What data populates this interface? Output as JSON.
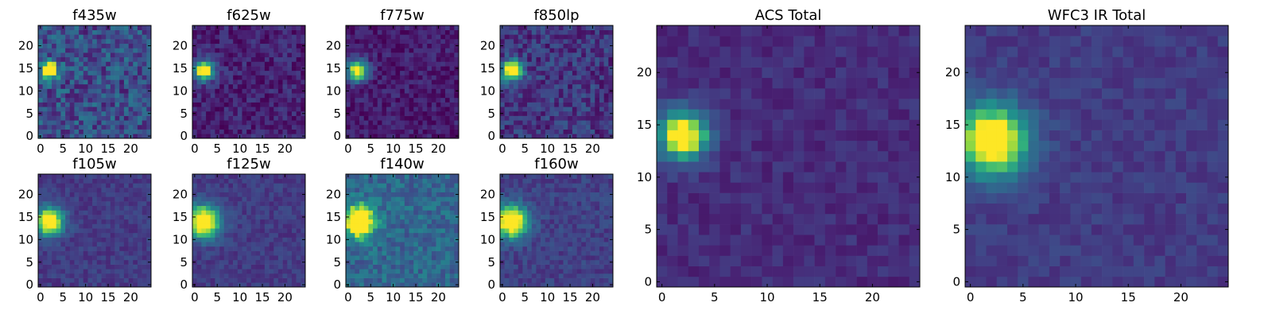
{
  "chart_data": [
    {
      "type": "heatmap",
      "title": "f435w",
      "xticks": [
        "0",
        "5",
        "10",
        "15",
        "20"
      ],
      "yticks": [
        "0",
        "5",
        "10",
        "15",
        "20"
      ],
      "xlim": [
        0,
        25
      ],
      "ylim": [
        0,
        25
      ],
      "peak": [
        2.5,
        15
      ],
      "peak_sigma": 1.4,
      "noise": 0.42,
      "background": 0.3,
      "palette": "viridis",
      "seed": 11
    },
    {
      "type": "heatmap",
      "title": "f625w",
      "xticks": [
        "0",
        "5",
        "10",
        "15",
        "20"
      ],
      "yticks": [
        "0",
        "5",
        "10",
        "15",
        "20"
      ],
      "xlim": [
        0,
        25
      ],
      "ylim": [
        0,
        25
      ],
      "peak": [
        2.5,
        15
      ],
      "peak_sigma": 1.6,
      "noise": 0.25,
      "background": 0.12,
      "palette": "viridis",
      "seed": 12
    },
    {
      "type": "heatmap",
      "title": "f775w",
      "xticks": [
        "0",
        "5",
        "10",
        "15",
        "20"
      ],
      "yticks": [
        "0",
        "5",
        "10",
        "15",
        "20"
      ],
      "xlim": [
        0,
        25
      ],
      "ylim": [
        0,
        25
      ],
      "peak": [
        2.5,
        15
      ],
      "peak_sigma": 1.6,
      "noise": 0.22,
      "background": 0.1,
      "palette": "viridis",
      "seed": 13
    },
    {
      "type": "heatmap",
      "title": "f850lp",
      "xticks": [
        "0",
        "5",
        "10",
        "15",
        "20"
      ],
      "yticks": [
        "0",
        "5",
        "10",
        "15",
        "20"
      ],
      "xlim": [
        0,
        25
      ],
      "ylim": [
        0,
        25
      ],
      "peak": [
        2.5,
        15
      ],
      "peak_sigma": 1.6,
      "noise": 0.32,
      "background": 0.2,
      "palette": "viridis",
      "seed": 14
    },
    {
      "type": "heatmap",
      "title": "f105w",
      "xticks": [
        "0",
        "5",
        "10",
        "15",
        "20"
      ],
      "yticks": [
        "0",
        "5",
        "10",
        "15",
        "20"
      ],
      "xlim": [
        0,
        25
      ],
      "ylim": [
        0,
        25
      ],
      "peak": [
        2.5,
        14.5
      ],
      "peak_sigma": 2.2,
      "noise": 0.16,
      "background": 0.22,
      "palette": "viridis",
      "seed": 15
    },
    {
      "type": "heatmap",
      "title": "f125w",
      "xticks": [
        "0",
        "5",
        "10",
        "15",
        "20"
      ],
      "yticks": [
        "0",
        "5",
        "10",
        "15",
        "20"
      ],
      "xlim": [
        0,
        25
      ],
      "ylim": [
        0,
        25
      ],
      "peak": [
        2.5,
        14.5
      ],
      "peak_sigma": 2.6,
      "noise": 0.16,
      "background": 0.22,
      "palette": "viridis",
      "seed": 16
    },
    {
      "type": "heatmap",
      "title": "f140w",
      "xticks": [
        "0",
        "5",
        "10",
        "15",
        "20"
      ],
      "yticks": [
        "0",
        "5",
        "10",
        "15",
        "20"
      ],
      "xlim": [
        0,
        25
      ],
      "ylim": [
        0,
        25
      ],
      "peak": [
        3,
        14.5
      ],
      "peak_sigma": 2.4,
      "noise": 0.28,
      "background": 0.42,
      "palette": "viridis",
      "seed": 17
    },
    {
      "type": "heatmap",
      "title": "f160w",
      "xticks": [
        "0",
        "5",
        "10",
        "15",
        "20"
      ],
      "yticks": [
        "0",
        "5",
        "10",
        "15",
        "20"
      ],
      "xlim": [
        0,
        25
      ],
      "ylim": [
        0,
        25
      ],
      "peak": [
        2.5,
        14.5
      ],
      "peak_sigma": 2.6,
      "noise": 0.18,
      "background": 0.24,
      "palette": "viridis",
      "seed": 18
    },
    {
      "type": "heatmap",
      "title": "ACS Total",
      "xticks": [
        "0",
        "5",
        "10",
        "15",
        "20"
      ],
      "yticks": [
        "0",
        "5",
        "10",
        "15",
        "20"
      ],
      "xlim": [
        0,
        25
      ],
      "ylim": [
        0,
        25
      ],
      "peak": [
        2.5,
        14.5
      ],
      "peak_sigma": 1.7,
      "noise": 0.14,
      "background": 0.16,
      "palette": "viridis",
      "seed": 19
    },
    {
      "type": "heatmap",
      "title": "WFC3 IR Total",
      "xticks": [
        "0",
        "5",
        "10",
        "15",
        "20"
      ],
      "yticks": [
        "0",
        "5",
        "10",
        "15",
        "20"
      ],
      "xlim": [
        0,
        25
      ],
      "ylim": [
        0,
        25
      ],
      "peak": [
        2.5,
        14
      ],
      "peak_sigma": 2.4,
      "noise": 0.13,
      "background": 0.22,
      "palette": "viridis",
      "seed": 20
    }
  ]
}
